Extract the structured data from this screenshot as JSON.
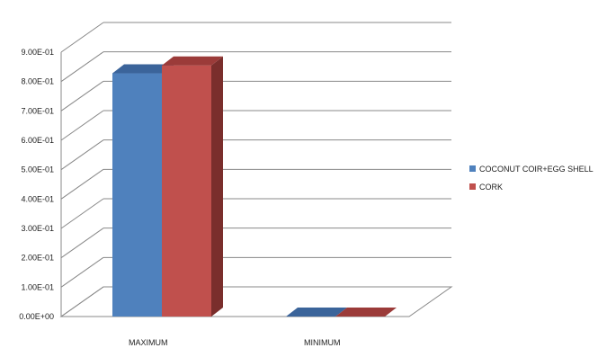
{
  "chart_data": {
    "type": "bar",
    "style": "3d-clustered-column",
    "categories": [
      "MAXIMUM",
      "MINIMUM"
    ],
    "series": [
      {
        "name": "COCONUT COIR+EGG SHELL",
        "values": [
          0.828,
          0.0
        ],
        "color": "#4F81BD",
        "top_color": "#3B649A",
        "side_color": "#2E4F7A"
      },
      {
        "name": "CORK",
        "values": [
          0.855,
          0.0
        ],
        "color": "#C0504D",
        "top_color": "#9B3B39",
        "side_color": "#7A2E2C"
      }
    ],
    "yticks": [
      "0.00E+00",
      "1.00E-01",
      "2.00E-01",
      "3.00E-01",
      "4.00E-01",
      "5.00E-01",
      "6.00E-01",
      "7.00E-01",
      "8.00E-01",
      "9.00E-01"
    ],
    "ylim": [
      0,
      0.9
    ],
    "grid": true,
    "legend_position": "right",
    "title": "",
    "xlabel": "",
    "ylabel": ""
  }
}
